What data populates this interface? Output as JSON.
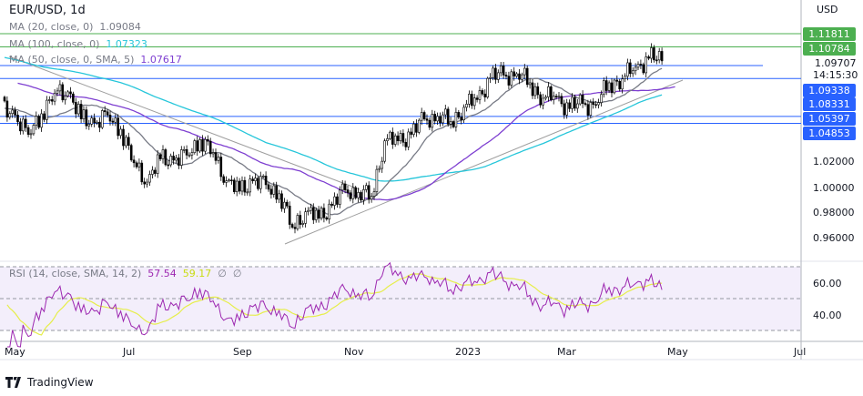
{
  "header": {
    "title": "EUR/USD, 1d",
    "currency": "USD"
  },
  "legend": [
    {
      "label": "MA (20, close, 0)",
      "value": "1.09084",
      "color": "#787b86"
    },
    {
      "label": "MA (100, close, 0)",
      "value": "1.07323",
      "color": "#26c6da"
    },
    {
      "label": "MA (50, close, 0, SMA, 5)",
      "value": "1.07617",
      "color": "#7e3fd1"
    }
  ],
  "rsi_legend": {
    "label": "RSI (14, close, SMA, 14, 2)",
    "rsi": "57.54",
    "ma": "59.17",
    "extra1": "∅",
    "extra2": "∅",
    "rsi_color": "#9c27b0",
    "ma_color": "#d4e81c"
  },
  "price_axis": {
    "ticks": [
      "1.02000",
      "1.00000",
      "0.98000",
      "0.96000"
    ],
    "current_price": "1.09707",
    "countdown": "14:15:30"
  },
  "levels": [
    {
      "price": 1.11811,
      "label": "1.11811",
      "color": "#4caf50"
    },
    {
      "price": 1.10784,
      "label": "1.10784",
      "color": "#4caf50"
    },
    {
      "price": 1.09338,
      "label": "1.09338",
      "color": "#2962ff"
    },
    {
      "price": 1.08331,
      "label": "1.08331",
      "color": "#2962ff"
    },
    {
      "price": 1.05397,
      "label": "1.05397",
      "color": "#2962ff"
    },
    {
      "price": 1.04853,
      "label": "1.04853",
      "color": "#2962ff"
    }
  ],
  "rsi_axis": {
    "ticks": [
      "60.00",
      "40.00"
    ]
  },
  "time_axis": [
    "May",
    "Jul",
    "Sep",
    "Nov",
    "2023",
    "Mar",
    "May",
    "Jul"
  ],
  "branding": {
    "logo_text": "TradingView"
  },
  "chart_data": {
    "type": "candlestick",
    "symbol": "EUR/USD",
    "interval": "1d",
    "weekly_closes": [
      1.055,
      1.04,
      1.056,
      1.072,
      1.073,
      1.052,
      1.049,
      1.055,
      1.044,
      1.018,
      1.003,
      1.021,
      1.02,
      1.024,
      1.036,
      1.026,
      1.004,
      0.996,
      1.004,
      1.001,
      0.994,
      0.968,
      0.98,
      0.975,
      0.985,
      0.997,
      0.995,
      0.992,
      1.035,
      1.035,
      1.04,
      1.052,
      1.054,
      1.05,
      1.061,
      1.067,
      1.084,
      1.086,
      1.087,
      1.08,
      1.068,
      1.069,
      1.06,
      1.064,
      1.063,
      1.08,
      1.083,
      1.092,
      1.099,
      1.097
    ],
    "ylim": [
      0.95,
      1.125
    ],
    "indicators": [
      "MA 20",
      "MA 50",
      "MA 100",
      "RSI 14"
    ],
    "rsi_bands": [
      70,
      50,
      30
    ]
  }
}
